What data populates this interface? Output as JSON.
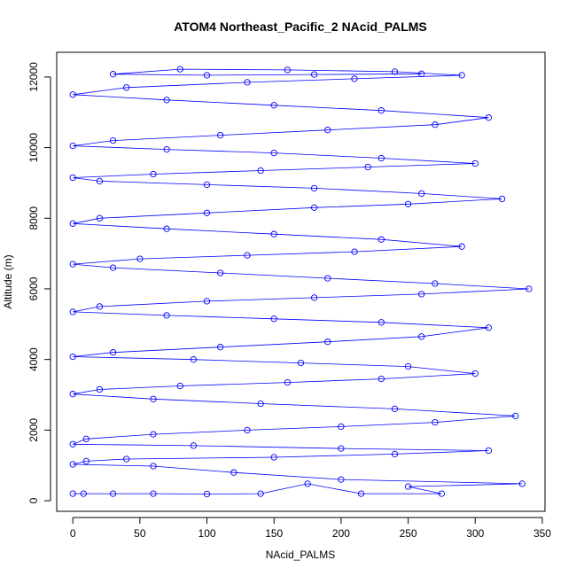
{
  "chart_data": {
    "type": "line",
    "title": "ATOM4 Northeast_Pacific_2 NAcid_PALMS",
    "xlabel": "NAcid_PALMS",
    "ylabel": "Altitude (m)",
    "xlim": [
      -12,
      352
    ],
    "ylim": [
      -300,
      12700
    ],
    "xticks": [
      0,
      50,
      100,
      150,
      200,
      250,
      300,
      350
    ],
    "yticks": [
      0,
      2000,
      4000,
      6000,
      8000,
      10000,
      12000
    ],
    "grid": false,
    "legend": "none",
    "colors": {
      "series": "#0000ff",
      "axes": "#000000"
    },
    "series": [
      {
        "marker": "open-circle",
        "points": [
          [
            0,
            200
          ],
          [
            8,
            200
          ],
          [
            30,
            200
          ],
          [
            60,
            200
          ],
          [
            100,
            190
          ],
          [
            140,
            200
          ],
          [
            175,
            480
          ],
          [
            215,
            200
          ],
          [
            275,
            200
          ],
          [
            250,
            400
          ],
          [
            335,
            480
          ],
          [
            200,
            600
          ],
          [
            120,
            800
          ],
          [
            60,
            980
          ],
          [
            0,
            1030
          ],
          [
            10,
            1120
          ],
          [
            40,
            1180
          ],
          [
            150,
            1230
          ],
          [
            240,
            1320
          ],
          [
            310,
            1420
          ],
          [
            200,
            1480
          ],
          [
            90,
            1560
          ],
          [
            0,
            1600
          ],
          [
            10,
            1750
          ],
          [
            60,
            1880
          ],
          [
            130,
            2000
          ],
          [
            200,
            2100
          ],
          [
            270,
            2220
          ],
          [
            330,
            2400
          ],
          [
            240,
            2600
          ],
          [
            140,
            2750
          ],
          [
            60,
            2880
          ],
          [
            0,
            3020
          ],
          [
            20,
            3150
          ],
          [
            80,
            3250
          ],
          [
            160,
            3350
          ],
          [
            230,
            3450
          ],
          [
            300,
            3600
          ],
          [
            250,
            3800
          ],
          [
            170,
            3900
          ],
          [
            90,
            4000
          ],
          [
            0,
            4080
          ],
          [
            30,
            4200
          ],
          [
            110,
            4350
          ],
          [
            190,
            4500
          ],
          [
            260,
            4650
          ],
          [
            310,
            4900
          ],
          [
            230,
            5050
          ],
          [
            150,
            5150
          ],
          [
            70,
            5250
          ],
          [
            0,
            5350
          ],
          [
            20,
            5500
          ],
          [
            100,
            5650
          ],
          [
            180,
            5750
          ],
          [
            260,
            5850
          ],
          [
            340,
            6000
          ],
          [
            270,
            6150
          ],
          [
            190,
            6300
          ],
          [
            110,
            6450
          ],
          [
            30,
            6600
          ],
          [
            0,
            6700
          ],
          [
            50,
            6850
          ],
          [
            130,
            6950
          ],
          [
            210,
            7050
          ],
          [
            290,
            7200
          ],
          [
            230,
            7400
          ],
          [
            150,
            7550
          ],
          [
            70,
            7700
          ],
          [
            0,
            7850
          ],
          [
            20,
            8000
          ],
          [
            100,
            8150
          ],
          [
            180,
            8300
          ],
          [
            250,
            8400
          ],
          [
            320,
            8550
          ],
          [
            260,
            8700
          ],
          [
            180,
            8850
          ],
          [
            100,
            8950
          ],
          [
            20,
            9050
          ],
          [
            0,
            9150
          ],
          [
            60,
            9250
          ],
          [
            140,
            9350
          ],
          [
            220,
            9450
          ],
          [
            300,
            9550
          ],
          [
            230,
            9700
          ],
          [
            150,
            9850
          ],
          [
            70,
            9950
          ],
          [
            0,
            10050
          ],
          [
            30,
            10200
          ],
          [
            110,
            10350
          ],
          [
            190,
            10500
          ],
          [
            270,
            10650
          ],
          [
            310,
            10850
          ],
          [
            230,
            11050
          ],
          [
            150,
            11200
          ],
          [
            70,
            11350
          ],
          [
            0,
            11500
          ],
          [
            40,
            11700
          ],
          [
            130,
            11850
          ],
          [
            210,
            11950
          ],
          [
            290,
            12050
          ],
          [
            240,
            12150
          ],
          [
            160,
            12200
          ],
          [
            80,
            12220
          ],
          [
            30,
            12080
          ],
          [
            100,
            12050
          ],
          [
            180,
            12070
          ],
          [
            260,
            12090
          ]
        ]
      }
    ]
  }
}
